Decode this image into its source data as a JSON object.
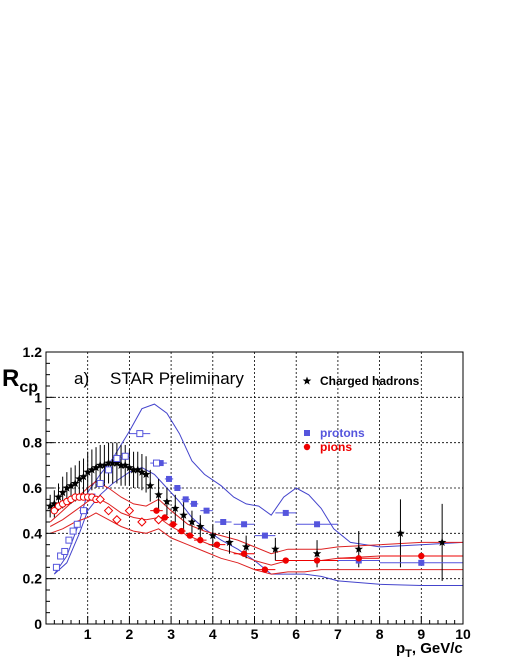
{
  "chart_data": {
    "type": "scatter",
    "title": "",
    "panel_label": "a)",
    "experiment_label": "STAR Preliminary",
    "ylabel": "R",
    "ylabel_sub": "cp",
    "xlabel": "p",
    "xlabel_sub": "T",
    "xlabel_unit": ", GeV/c",
    "xlim": [
      0,
      10
    ],
    "ylim": [
      0,
      1.2
    ],
    "x_ticks": [
      1,
      2,
      3,
      4,
      5,
      6,
      7,
      8,
      9,
      10
    ],
    "x_tick_labels": [
      "1",
      "2",
      "3",
      "4",
      "5",
      "6",
      "7",
      "8",
      "9",
      "10"
    ],
    "y_ticks": [
      0,
      0.2,
      0.4,
      0.6,
      0.8,
      1,
      1.2
    ],
    "y_tick_labels": [
      "0",
      "0.2",
      "0.4",
      "0.6",
      "0.8",
      "1",
      "1.2"
    ],
    "grid": true,
    "colors": {
      "hadrons": "#000000",
      "protons": "#5555dd",
      "pions": "#ee0000",
      "proton_band": "#4444cc",
      "pion_band": "#dd2222"
    },
    "series": [
      {
        "name": "Charged hadrons",
        "marker": "star",
        "points": [
          {
            "x": 0.1,
            "y": 0.52,
            "err": 0.05
          },
          {
            "x": 0.2,
            "y": 0.53,
            "err": 0.06
          },
          {
            "x": 0.3,
            "y": 0.56,
            "err": 0.06
          },
          {
            "x": 0.4,
            "y": 0.58,
            "err": 0.07
          },
          {
            "x": 0.5,
            "y": 0.6,
            "err": 0.07
          },
          {
            "x": 0.6,
            "y": 0.61,
            "err": 0.08
          },
          {
            "x": 0.7,
            "y": 0.62,
            "err": 0.08
          },
          {
            "x": 0.8,
            "y": 0.64,
            "err": 0.08
          },
          {
            "x": 0.9,
            "y": 0.65,
            "err": 0.08
          },
          {
            "x": 1.0,
            "y": 0.67,
            "err": 0.09
          },
          {
            "x": 1.1,
            "y": 0.68,
            "err": 0.09
          },
          {
            "x": 1.2,
            "y": 0.69,
            "err": 0.09
          },
          {
            "x": 1.3,
            "y": 0.7,
            "err": 0.09
          },
          {
            "x": 1.4,
            "y": 0.7,
            "err": 0.09
          },
          {
            "x": 1.5,
            "y": 0.71,
            "err": 0.09
          },
          {
            "x": 1.6,
            "y": 0.71,
            "err": 0.09
          },
          {
            "x": 1.7,
            "y": 0.71,
            "err": 0.09
          },
          {
            "x": 1.8,
            "y": 0.7,
            "err": 0.09
          },
          {
            "x": 1.9,
            "y": 0.7,
            "err": 0.09
          },
          {
            "x": 2.0,
            "y": 0.69,
            "err": 0.08
          },
          {
            "x": 2.1,
            "y": 0.68,
            "err": 0.08
          },
          {
            "x": 2.2,
            "y": 0.68,
            "err": 0.08
          },
          {
            "x": 2.3,
            "y": 0.67,
            "err": 0.08
          },
          {
            "x": 2.4,
            "y": 0.66,
            "err": 0.08
          },
          {
            "x": 2.5,
            "y": 0.61,
            "err": 0.07
          },
          {
            "x": 2.7,
            "y": 0.57,
            "err": 0.07
          },
          {
            "x": 2.9,
            "y": 0.54,
            "err": 0.06
          },
          {
            "x": 3.1,
            "y": 0.51,
            "err": 0.06
          },
          {
            "x": 3.3,
            "y": 0.48,
            "err": 0.06
          },
          {
            "x": 3.5,
            "y": 0.45,
            "err": 0.05
          },
          {
            "x": 3.7,
            "y": 0.43,
            "err": 0.05
          },
          {
            "x": 4.0,
            "y": 0.39,
            "err": 0.05
          },
          {
            "x": 4.4,
            "y": 0.36,
            "err": 0.05
          },
          {
            "x": 4.8,
            "y": 0.34,
            "err": 0.05
          },
          {
            "x": 5.5,
            "y": 0.33,
            "err": 0.05
          },
          {
            "x": 6.5,
            "y": 0.31,
            "err": 0.06
          },
          {
            "x": 7.5,
            "y": 0.33,
            "err": 0.08
          },
          {
            "x": 8.5,
            "y": 0.4,
            "err": 0.15
          },
          {
            "x": 9.5,
            "y": 0.36,
            "err": 0.17
          }
        ]
      },
      {
        "name": "protons",
        "marker": "square",
        "points": [
          {
            "x": 2.75,
            "y": 0.71,
            "xerr": 0.15
          },
          {
            "x": 2.95,
            "y": 0.64,
            "xerr": 0.1
          },
          {
            "x": 3.15,
            "y": 0.6,
            "xerr": 0.1
          },
          {
            "x": 3.35,
            "y": 0.55,
            "xerr": 0.1
          },
          {
            "x": 3.55,
            "y": 0.53,
            "xerr": 0.1
          },
          {
            "x": 3.85,
            "y": 0.5,
            "xerr": 0.15
          },
          {
            "x": 4.25,
            "y": 0.45,
            "xerr": 0.2
          },
          {
            "x": 4.75,
            "y": 0.44,
            "xerr": 0.25
          },
          {
            "x": 5.25,
            "y": 0.39,
            "xerr": 0.25
          },
          {
            "x": 5.75,
            "y": 0.49,
            "xerr": 0.25
          },
          {
            "x": 6.5,
            "y": 0.44,
            "xerr": 0.5
          },
          {
            "x": 7.5,
            "y": 0.28,
            "xerr": 0.5
          },
          {
            "x": 9.0,
            "y": 0.27,
            "xerr": 1.0
          }
        ]
      },
      {
        "name": "protons (open)",
        "marker": "open-square",
        "points": [
          {
            "x": 0.25,
            "y": 0.25,
            "xerr": 0.05
          },
          {
            "x": 0.35,
            "y": 0.3,
            "xerr": 0.05
          },
          {
            "x": 0.45,
            "y": 0.32,
            "xerr": 0.05
          },
          {
            "x": 0.55,
            "y": 0.37,
            "xerr": 0.05
          },
          {
            "x": 0.65,
            "y": 0.41,
            "xerr": 0.05
          },
          {
            "x": 0.75,
            "y": 0.44,
            "xerr": 0.05
          },
          {
            "x": 0.9,
            "y": 0.5,
            "xerr": 0.1
          },
          {
            "x": 1.1,
            "y": 0.56,
            "xerr": 0.1
          },
          {
            "x": 1.3,
            "y": 0.62,
            "xerr": 0.1
          },
          {
            "x": 1.5,
            "y": 0.68,
            "xerr": 0.1
          },
          {
            "x": 1.7,
            "y": 0.73,
            "xerr": 0.1
          },
          {
            "x": 1.9,
            "y": 0.74,
            "xerr": 0.1
          },
          {
            "x": 2.25,
            "y": 0.84,
            "xerr": 0.25
          },
          {
            "x": 2.65,
            "y": 0.71,
            "xerr": 0.15
          }
        ]
      },
      {
        "name": "pions",
        "marker": "circle",
        "points": [
          {
            "x": 2.65,
            "y": 0.5,
            "xerr": 0.15
          },
          {
            "x": 2.85,
            "y": 0.47,
            "xerr": 0.1
          },
          {
            "x": 3.05,
            "y": 0.44,
            "xerr": 0.1
          },
          {
            "x": 3.25,
            "y": 0.41,
            "xerr": 0.1
          },
          {
            "x": 3.45,
            "y": 0.39,
            "xerr": 0.1
          },
          {
            "x": 3.7,
            "y": 0.37,
            "xerr": 0.15
          },
          {
            "x": 4.1,
            "y": 0.35,
            "xerr": 0.2
          },
          {
            "x": 4.75,
            "y": 0.31,
            "xerr": 0.25
          },
          {
            "x": 5.25,
            "y": 0.24,
            "xerr": 0.25
          },
          {
            "x": 5.75,
            "y": 0.28,
            "xerr": 0.25
          },
          {
            "x": 6.5,
            "y": 0.28,
            "xerr": 0.5
          },
          {
            "x": 7.5,
            "y": 0.29,
            "xerr": 0.5
          },
          {
            "x": 9.0,
            "y": 0.3,
            "xerr": 1.0
          }
        ]
      },
      {
        "name": "pions (open)",
        "marker": "open-circle",
        "points": [
          {
            "x": 0.2,
            "y": 0.5
          },
          {
            "x": 0.3,
            "y": 0.52
          },
          {
            "x": 0.4,
            "y": 0.53
          },
          {
            "x": 0.5,
            "y": 0.54
          },
          {
            "x": 0.6,
            "y": 0.55
          },
          {
            "x": 0.7,
            "y": 0.56
          },
          {
            "x": 0.8,
            "y": 0.56
          },
          {
            "x": 0.9,
            "y": 0.56
          },
          {
            "x": 1.0,
            "y": 0.56
          },
          {
            "x": 1.1,
            "y": 0.56
          },
          {
            "x": 1.2,
            "y": 0.55
          }
        ]
      },
      {
        "name": "pions (open diamond)",
        "marker": "open-diamond",
        "points": [
          {
            "x": 1.3,
            "y": 0.55
          },
          {
            "x": 1.5,
            "y": 0.5
          },
          {
            "x": 1.7,
            "y": 0.46
          },
          {
            "x": 2.0,
            "y": 0.5
          },
          {
            "x": 2.3,
            "y": 0.45
          },
          {
            "x": 2.7,
            "y": 0.46
          }
        ]
      }
    ],
    "bands": [
      {
        "name": "proton upper",
        "color_key": "proton_band",
        "points": [
          [
            0.2,
            0.22
          ],
          [
            0.5,
            0.3
          ],
          [
            0.8,
            0.45
          ],
          [
            1.0,
            0.58
          ],
          [
            1.3,
            0.66
          ],
          [
            1.6,
            0.73
          ],
          [
            2.0,
            0.85
          ],
          [
            2.3,
            0.95
          ],
          [
            2.6,
            0.97
          ],
          [
            2.9,
            0.93
          ],
          [
            3.2,
            0.84
          ],
          [
            3.5,
            0.72
          ],
          [
            3.8,
            0.66
          ],
          [
            4.2,
            0.61
          ],
          [
            4.5,
            0.56
          ],
          [
            4.8,
            0.53
          ],
          [
            5.1,
            0.52
          ],
          [
            5.4,
            0.48
          ],
          [
            5.7,
            0.56
          ],
          [
            6.0,
            0.6
          ],
          [
            6.3,
            0.57
          ],
          [
            6.6,
            0.51
          ],
          [
            6.9,
            0.42
          ],
          [
            7.3,
            0.36
          ],
          [
            8,
            0.34
          ],
          [
            9,
            0.35
          ],
          [
            10,
            0.36
          ]
        ]
      },
      {
        "name": "proton lower",
        "color_key": "proton_band",
        "points": [
          [
            0.2,
            0.22
          ],
          [
            0.5,
            0.27
          ],
          [
            0.8,
            0.4
          ],
          [
            1.0,
            0.5
          ],
          [
            1.3,
            0.57
          ],
          [
            1.6,
            0.62
          ],
          [
            2.0,
            0.67
          ],
          [
            2.3,
            0.69
          ],
          [
            2.6,
            0.66
          ],
          [
            2.9,
            0.6
          ],
          [
            3.2,
            0.54
          ],
          [
            3.5,
            0.47
          ],
          [
            3.8,
            0.42
          ],
          [
            4.2,
            0.37
          ],
          [
            4.6,
            0.33
          ],
          [
            5.0,
            0.28
          ],
          [
            5.4,
            0.22
          ],
          [
            5.8,
            0.22
          ],
          [
            6.2,
            0.22
          ],
          [
            6.6,
            0.21
          ],
          [
            7.0,
            0.19
          ],
          [
            8,
            0.175
          ],
          [
            9,
            0.17
          ],
          [
            10,
            0.17
          ]
        ]
      },
      {
        "name": "pion upper",
        "color_key": "pion_band",
        "points": [
          [
            0.1,
            0.45
          ],
          [
            0.4,
            0.5
          ],
          [
            0.7,
            0.55
          ],
          [
            1.0,
            0.6
          ],
          [
            1.2,
            0.63
          ],
          [
            1.5,
            0.6
          ],
          [
            1.8,
            0.56
          ],
          [
            2.1,
            0.53
          ],
          [
            2.4,
            0.52
          ],
          [
            2.7,
            0.55
          ],
          [
            3.0,
            0.5
          ],
          [
            3.4,
            0.44
          ],
          [
            3.8,
            0.41
          ],
          [
            4.2,
            0.39
          ],
          [
            4.6,
            0.37
          ],
          [
            5.0,
            0.34
          ],
          [
            5.4,
            0.31
          ],
          [
            5.8,
            0.33
          ],
          [
            6.2,
            0.33
          ],
          [
            6.6,
            0.33
          ],
          [
            7,
            0.34
          ],
          [
            8,
            0.35
          ],
          [
            9,
            0.36
          ],
          [
            10,
            0.36
          ]
        ]
      },
      {
        "name": "pion middle",
        "color_key": "pion_band",
        "points": [
          [
            0.1,
            0.43
          ],
          [
            0.4,
            0.46
          ],
          [
            0.7,
            0.5
          ],
          [
            1.0,
            0.54
          ],
          [
            1.2,
            0.56
          ],
          [
            1.5,
            0.53
          ],
          [
            1.8,
            0.49
          ],
          [
            2.1,
            0.47
          ],
          [
            2.4,
            0.46
          ],
          [
            2.7,
            0.47
          ],
          [
            3.0,
            0.43
          ],
          [
            3.4,
            0.39
          ],
          [
            3.8,
            0.36
          ],
          [
            4.2,
            0.33
          ],
          [
            4.6,
            0.31
          ],
          [
            5.0,
            0.28
          ],
          [
            5.4,
            0.26
          ],
          [
            5.8,
            0.28
          ],
          [
            6.2,
            0.28
          ],
          [
            6.6,
            0.28
          ],
          [
            7,
            0.29
          ],
          [
            8,
            0.3
          ],
          [
            9,
            0.3
          ],
          [
            10,
            0.3
          ]
        ]
      },
      {
        "name": "pion lower",
        "color_key": "pion_band",
        "points": [
          [
            0.1,
            0.4
          ],
          [
            0.4,
            0.42
          ],
          [
            0.7,
            0.45
          ],
          [
            1.0,
            0.47
          ],
          [
            1.2,
            0.49
          ],
          [
            1.5,
            0.46
          ],
          [
            1.8,
            0.43
          ],
          [
            2.1,
            0.41
          ],
          [
            2.4,
            0.4
          ],
          [
            2.7,
            0.42
          ],
          [
            3.0,
            0.38
          ],
          [
            3.4,
            0.35
          ],
          [
            3.8,
            0.32
          ],
          [
            4.2,
            0.29
          ],
          [
            4.6,
            0.27
          ],
          [
            5.0,
            0.24
          ],
          [
            5.4,
            0.22
          ],
          [
            5.8,
            0.23
          ],
          [
            6.2,
            0.23
          ],
          [
            6.6,
            0.24
          ],
          [
            7,
            0.24
          ],
          [
            8,
            0.24
          ],
          [
            9,
            0.24
          ],
          [
            10,
            0.24
          ]
        ]
      }
    ],
    "legend": [
      {
        "label": "Charged hadrons",
        "marker": "star",
        "color_key": "hadrons"
      },
      {
        "label": "protons",
        "marker": "square",
        "color_key": "protons"
      },
      {
        "label": "pions",
        "marker": "circle",
        "color_key": "pions"
      }
    ]
  }
}
